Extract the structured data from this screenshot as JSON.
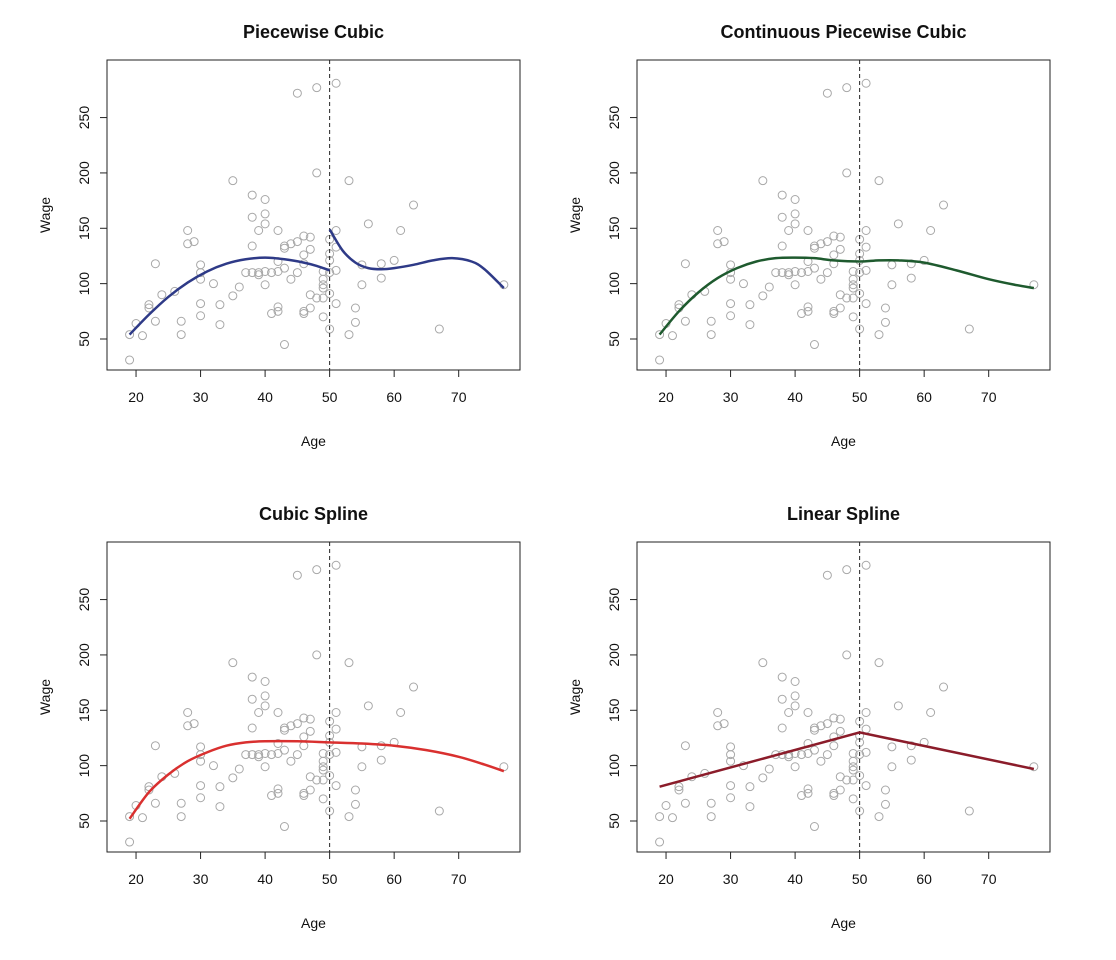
{
  "chart_data": {
    "type": "scatter",
    "xlabel": "Age",
    "ylabel": "Wage",
    "xlim": [
      15.5,
      79.5
    ],
    "ylim": [
      22,
      302
    ],
    "xticks": [
      20,
      30,
      40,
      50,
      60,
      70
    ],
    "yticks": [
      50,
      100,
      150,
      200,
      250
    ],
    "knot": 50,
    "grid": false,
    "point_color": "#a8a8a8",
    "points": {
      "x": [
        19,
        19,
        20,
        21,
        22,
        22,
        23,
        23,
        24,
        26,
        27,
        27,
        28,
        28,
        29,
        30,
        30,
        30,
        30,
        30,
        32,
        33,
        33,
        35,
        35,
        36,
        37,
        38,
        38,
        38,
        38,
        39,
        39,
        39,
        40,
        40,
        40,
        40,
        40,
        41,
        41,
        42,
        42,
        42,
        42,
        42,
        43,
        43,
        43,
        43,
        44,
        44,
        45,
        45,
        45,
        46,
        46,
        46,
        46,
        46,
        47,
        47,
        47,
        47,
        48,
        51,
        48,
        53,
        63,
        56,
        61,
        51,
        50,
        51,
        50,
        50,
        55,
        58,
        60,
        49,
        50,
        51,
        49,
        49,
        49,
        58,
        55,
        77,
        50,
        48,
        49,
        51,
        54,
        49,
        54,
        50,
        53,
        67
      ],
      "y": [
        31,
        54,
        64,
        53,
        81,
        78,
        118,
        66,
        90,
        93,
        66,
        54,
        148,
        136,
        138,
        117,
        110,
        104,
        82,
        71,
        100,
        81,
        63,
        193,
        89,
        97,
        110,
        110,
        134,
        160,
        180,
        110,
        108,
        148,
        176,
        163,
        154,
        111,
        99,
        110,
        73,
        148,
        120,
        111,
        79,
        75,
        134,
        132,
        114,
        45,
        136,
        104,
        138,
        272,
        110,
        143,
        126,
        118,
        75,
        73,
        142,
        131,
        90,
        78,
        277,
        281,
        200,
        193,
        171,
        154,
        148,
        148,
        140,
        133,
        127,
        121,
        117,
        118,
        121,
        111,
        110,
        112,
        104,
        99,
        96,
        105,
        99,
        99,
        91,
        87,
        87,
        82,
        78,
        70,
        65,
        59,
        54,
        59
      ]
    },
    "panels": [
      {
        "title": "Piecewise Cubic",
        "type": "line",
        "color": "#2e3a87",
        "segments": [
          {
            "x": [
              19,
              22,
              25,
              28,
              31,
              34,
              37,
              40,
              43,
              46,
              48,
              50
            ],
            "y": [
              54,
              72,
              88,
              101,
              111,
              118,
              122,
              123.5,
              122,
              119,
              116,
              112
            ]
          },
          {
            "x": [
              50,
              52,
              54,
              56,
              58,
              60,
              63,
              66,
              69,
              72,
              74,
              77
            ],
            "y": [
              149,
              130,
              119,
              114,
              113,
              114,
              117,
              121,
              123,
              120,
              113,
              96
            ]
          }
        ]
      },
      {
        "title": "Continuous Piecewise Cubic",
        "type": "line",
        "color": "#1e5a2e",
        "segments": [
          {
            "x": [
              19,
              22,
              25,
              28,
              31,
              34,
              37,
              40,
              43,
              46,
              50,
              53,
              56,
              60,
              65,
              70,
              74,
              77
            ],
            "y": [
              54,
              75,
              92,
              105,
              114,
              120,
              123,
              123.5,
              123,
              121,
              120,
              121,
              121,
              119,
              112,
              104,
              99,
              96
            ]
          }
        ]
      },
      {
        "title": "Cubic Spline",
        "type": "line",
        "color": "#d9302f",
        "segments": [
          {
            "x": [
              19,
              22,
              25,
              28,
              31,
              34,
              37,
              40,
              45,
              50,
              55,
              60,
              65,
              70,
              74,
              77
            ],
            "y": [
              52,
              76,
              92,
              104,
              112,
              118,
              121,
              122,
              122,
              121,
              120,
              118,
              114,
              108,
              101,
              95
            ]
          }
        ]
      },
      {
        "title": "Linear Spline",
        "type": "line",
        "color": "#8b1c2a",
        "segments": [
          {
            "x": [
              19,
              50,
              77
            ],
            "y": [
              81,
              130,
              97
            ]
          }
        ]
      }
    ]
  }
}
